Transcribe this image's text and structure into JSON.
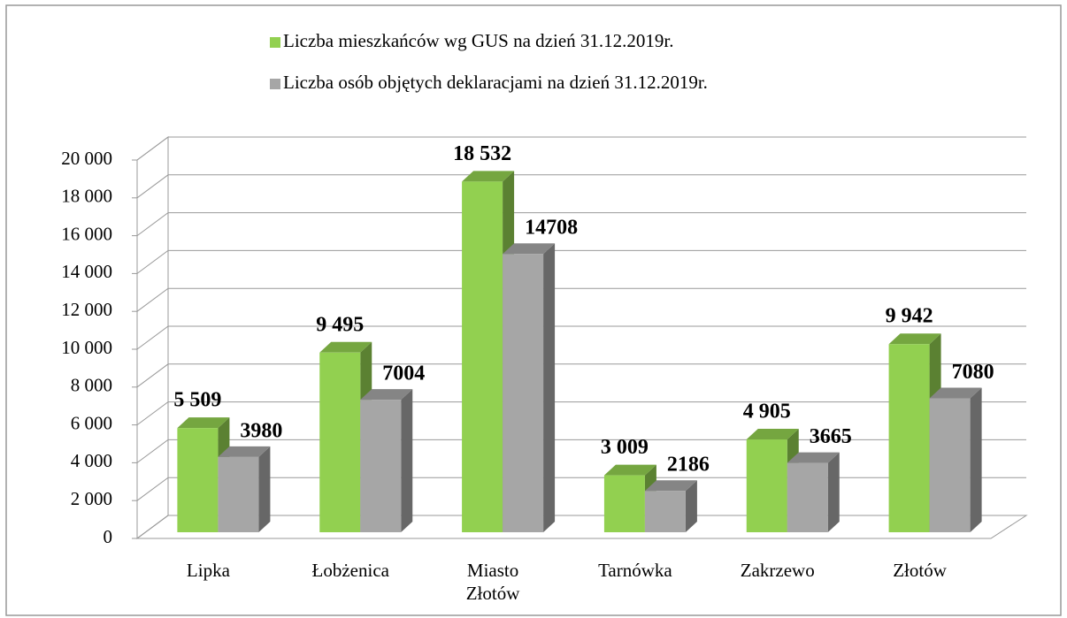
{
  "chart_data": {
    "type": "bar3d",
    "categories": [
      "Lipka",
      "Łobżenica",
      "Miasto Złotów",
      "Tarnówka",
      "Zakrzewo",
      "Złotów"
    ],
    "series": [
      {
        "name": "Liczba mieszkańców wg GUS na dzień 31.12.2019r.",
        "color": "#92d050",
        "values": [
          5509,
          9495,
          18532,
          3009,
          4905,
          9942
        ],
        "value_labels": [
          "5 509",
          "9 495",
          "18 532",
          "3 009",
          "4 905",
          "9 942"
        ]
      },
      {
        "name": "Liczba osób objętych deklaracjami na dzień 31.12.2019r.",
        "color": "#a6a6a6",
        "values": [
          3980,
          7004,
          14708,
          2186,
          3665,
          7080
        ]
      }
    ],
    "ylim": [
      0,
      20000
    ],
    "yticks": [
      0,
      {
        "value": 2000,
        "label": "2 000"
      },
      {
        "value": 4000,
        "label": "4 000"
      },
      {
        "value": 6000,
        "label": "6 000"
      },
      {
        "value": 8000,
        "label": "8 000"
      },
      {
        "value": 10000,
        "label": "10 000"
      },
      {
        "value": 12000,
        "label": "12 000"
      },
      {
        "value": 14000,
        "label": "14 000"
      },
      {
        "value": 16000,
        "label": "16 000"
      },
      {
        "value": 18000,
        "label": "18 000"
      },
      {
        "value": 20000,
        "label": "20 000"
      }
    ],
    "grid": true,
    "legend": "top"
  }
}
